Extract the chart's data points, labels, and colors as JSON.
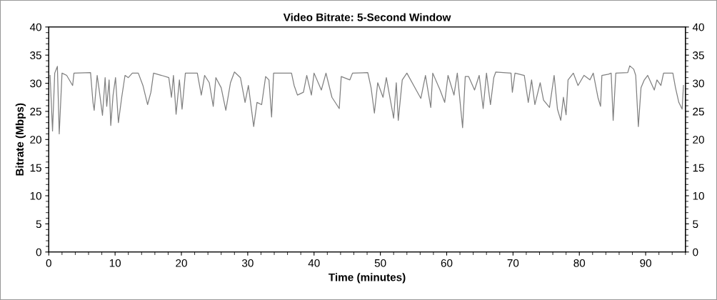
{
  "chart_data": {
    "type": "line",
    "title": "Video Bitrate: 5-Second Window",
    "xlabel": "Time (minutes)",
    "ylabel": "Bitrate (Mbps)",
    "series": [
      {
        "color": "#808080",
        "x": [
          0.2,
          0.57,
          0.9,
          1.3,
          1.58,
          2.0,
          2.7,
          3.6,
          3.8,
          6.3,
          6.67,
          6.85,
          7.3,
          7.56,
          8.1,
          8.5,
          8.74,
          9.1,
          9.35,
          9.7,
          10.07,
          10.5,
          11.0,
          11.5,
          12.0,
          12.6,
          13.5,
          14.2,
          14.9,
          15.4,
          15.8,
          17.0,
          18.1,
          18.5,
          18.8,
          19.2,
          19.7,
          20.1,
          20.6,
          22.4,
          23.0,
          23.5,
          24.2,
          24.8,
          25.2,
          26.0,
          26.7,
          27.4,
          28.0,
          28.9,
          29.6,
          30.1,
          30.9,
          31.4,
          32.1,
          32.7,
          33.2,
          33.6,
          33.9,
          36.6,
          37.0,
          37.5,
          38.4,
          38.9,
          39.6,
          40.0,
          41.1,
          41.8,
          42.7,
          43.8,
          44.1,
          45.4,
          45.8,
          48.1,
          48.6,
          49.1,
          49.6,
          50.4,
          50.9,
          52.0,
          52.4,
          52.7,
          53.3,
          54.0,
          55.4,
          56.1,
          56.8,
          57.6,
          57.9,
          59.0,
          59.7,
          60.2,
          61.1,
          61.6,
          62.4,
          62.8,
          63.3,
          64.2,
          64.9,
          65.5,
          66.0,
          66.6,
          67.1,
          67.4,
          69.7,
          69.9,
          70.3,
          71.7,
          72.3,
          72.8,
          73.3,
          74.1,
          74.6,
          75.5,
          76.2,
          76.7,
          77.2,
          77.6,
          78.0,
          78.3,
          79.1,
          79.8,
          80.7,
          81.6,
          82.1,
          82.8,
          83.2,
          83.4,
          84.4,
          84.8,
          85.1,
          85.5,
          87.3,
          87.6,
          88.2,
          88.5,
          88.9,
          89.3,
          89.8,
          90.3,
          91.3,
          91.7,
          92.3,
          92.7,
          94.1,
          94.5,
          95.0,
          95.5,
          95.7
        ],
        "values": [
          31.4,
          21.5,
          31.8,
          33.0,
          21.0,
          31.8,
          31.4,
          29.6,
          31.8,
          31.9,
          26.6,
          25.2,
          31.4,
          29.2,
          24.3,
          31.0,
          25.9,
          30.6,
          22.5,
          27.9,
          31.0,
          23.0,
          27.5,
          31.4,
          31.0,
          31.8,
          31.8,
          29.6,
          26.2,
          28.4,
          31.8,
          31.4,
          31.0,
          27.5,
          31.4,
          24.5,
          30.6,
          25.4,
          31.8,
          31.8,
          27.9,
          31.4,
          30.1,
          25.9,
          31.0,
          29.2,
          25.2,
          30.1,
          32.0,
          31.0,
          26.6,
          29.6,
          22.3,
          26.6,
          26.2,
          31.2,
          30.6,
          24.0,
          31.8,
          31.8,
          29.6,
          27.9,
          28.4,
          31.4,
          27.9,
          31.8,
          28.8,
          31.8,
          27.5,
          25.5,
          31.2,
          30.6,
          31.8,
          31.9,
          29.2,
          24.7,
          30.1,
          27.5,
          31.0,
          23.8,
          30.1,
          23.4,
          30.6,
          31.8,
          28.8,
          27.3,
          31.4,
          25.7,
          31.8,
          28.8,
          26.6,
          31.4,
          27.9,
          31.8,
          22.1,
          31.2,
          31.2,
          28.8,
          31.4,
          25.5,
          31.8,
          26.2,
          31.0,
          32.0,
          31.8,
          28.4,
          31.8,
          31.4,
          26.6,
          30.6,
          26.2,
          30.1,
          27.0,
          25.7,
          31.4,
          25.4,
          23.4,
          27.5,
          24.4,
          30.6,
          31.8,
          29.6,
          31.4,
          30.6,
          31.8,
          27.5,
          25.9,
          31.4,
          31.6,
          31.8,
          23.4,
          31.8,
          31.9,
          33.1,
          32.5,
          31.4,
          22.3,
          29.2,
          30.6,
          31.4,
          28.8,
          30.6,
          29.6,
          31.8,
          31.8,
          29.2,
          26.6,
          25.4,
          29.6
        ]
      }
    ],
    "xlim": [
      0,
      96
    ],
    "xticks": [
      0,
      {
        "value": 2,
        "label": null
      },
      {
        "value": 4,
        "label": null
      },
      {
        "value": 6,
        "label": null
      },
      {
        "value": 8,
        "label": null
      },
      10,
      {
        "value": 12,
        "label": null
      },
      {
        "value": 14,
        "label": null
      },
      {
        "value": 16,
        "label": null
      },
      {
        "value": 18,
        "label": null
      },
      20,
      {
        "value": 22,
        "label": null
      },
      {
        "value": 24,
        "label": null
      },
      {
        "value": 26,
        "label": null
      },
      {
        "value": 28,
        "label": null
      },
      30,
      {
        "value": 32,
        "label": null
      },
      {
        "value": 34,
        "label": null
      },
      {
        "value": 36,
        "label": null
      },
      {
        "value": 38,
        "label": null
      },
      40,
      {
        "value": 42,
        "label": null
      },
      {
        "value": 44,
        "label": null
      },
      {
        "value": 46,
        "label": null
      },
      {
        "value": 48,
        "label": null
      },
      50,
      {
        "value": 52,
        "label": null
      },
      {
        "value": 54,
        "label": null
      },
      {
        "value": 56,
        "label": null
      },
      {
        "value": 58,
        "label": null
      },
      60,
      {
        "value": 62,
        "label": null
      },
      {
        "value": 64,
        "label": null
      },
      {
        "value": 66,
        "label": null
      },
      {
        "value": 68,
        "label": null
      },
      70,
      {
        "value": 72,
        "label": null
      },
      {
        "value": 74,
        "label": null
      },
      {
        "value": 76,
        "label": null
      },
      {
        "value": 78,
        "label": null
      },
      80,
      {
        "value": 82,
        "label": null
      },
      {
        "value": 84,
        "label": null
      },
      {
        "value": 86,
        "label": null
      },
      {
        "value": 88,
        "label": null
      },
      90,
      {
        "value": 92,
        "label": null
      },
      {
        "value": 94,
        "label": null
      },
      {
        "value": 96,
        "label": null
      }
    ],
    "ylim": [
      0,
      40
    ],
    "yticks": [
      0,
      5,
      10,
      15,
      20,
      25,
      30,
      35,
      40
    ],
    "y2lim": [
      0,
      40
    ],
    "y2ticks": [
      0,
      5,
      10,
      15,
      20,
      25,
      30,
      35,
      40
    ],
    "grid": false,
    "legend": false,
    "marker": "none",
    "line_style": "solid"
  }
}
